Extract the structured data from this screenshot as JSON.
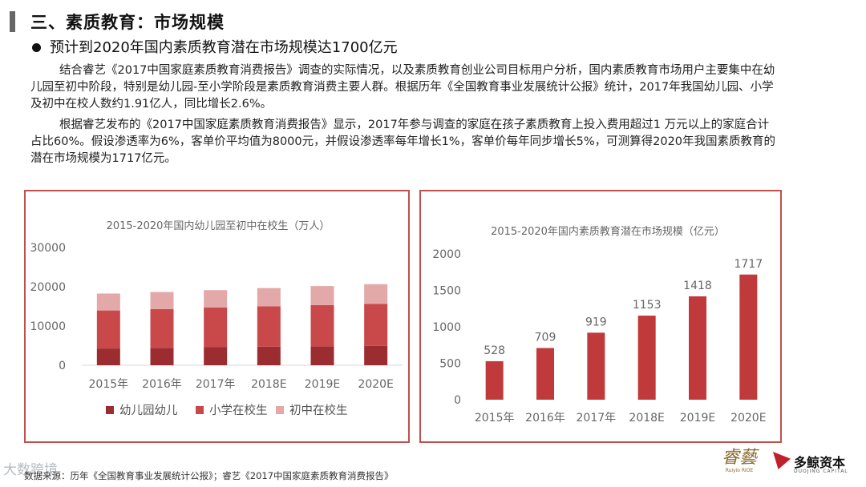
{
  "header": {
    "title": "三、素质教育：市场规模",
    "bullet": "预计到2020年国内素质教育潜在市场规模达1700亿元"
  },
  "body": {
    "paragraph1": "结合睿艺《2017中国家庭素质教育消费报告》调查的实际情况，以及素质教育创业公司目标用户分析，国内素质教育市场用户主要集中在幼儿园至初中阶段，特别是幼儿园-至小学阶段是素质教育消费主要人群。根据历年《全国教育事业发展统计公报》统计，2017年我国幼儿园、小学及初中在校人数约1.91亿人，同比增长2.6%。",
    "paragraph2": "根据睿艺发布的《2017中国家庭素质教育消费报告》显示，2017年参与调查的家庭在孩子素质教育上投入费用超过1 万元以上的家庭合计占比60%。假设渗透率为6%，客单价平均值为8000元，并假设渗透率每年增长1%，客单价每年同步增长5%，可测算得2020年我国素质教育的潜在市场规模为1717亿元。"
  },
  "colors": {
    "accent": "#c0504d",
    "kindergarten": "#9b2d30",
    "primary": "#c9494a",
    "junior": "#e3a8a8",
    "bar": "#c0393b"
  },
  "chart_data": [
    {
      "type": "bar",
      "stacked": true,
      "title": "2015-2020年国内幼儿园至初中在校生（万人）",
      "categories": [
        "2015年",
        "2016年",
        "2017年",
        "2018E",
        "2019E",
        "2020E"
      ],
      "series": [
        {
          "name": "幼儿园幼儿",
          "values": [
            4265,
            4414,
            4600,
            4720,
            4830,
            4950
          ]
        },
        {
          "name": "小学在校生",
          "values": [
            9692,
            9913,
            10094,
            10300,
            10500,
            10700
          ]
        },
        {
          "name": "初中在校生",
          "values": [
            4312,
            4329,
            4442,
            4650,
            4850,
            5000
          ]
        }
      ],
      "yticks": [
        "0",
        "10000",
        "20000",
        "30000"
      ],
      "ylim": [
        0,
        30000
      ],
      "legend": "bottom"
    },
    {
      "type": "bar",
      "title": "2015-2020年国内素质教育潜在市场规模（亿元）",
      "categories": [
        "2015年",
        "2016年",
        "2017年",
        "2018E",
        "2019E",
        "2020E"
      ],
      "values": [
        528,
        709,
        919,
        1153,
        1418,
        1717
      ],
      "value_labels": [
        "528",
        "709",
        "919",
        "1153",
        "1418",
        "1717"
      ],
      "yticks": [
        "0",
        "500",
        "1000",
        "1500",
        "2000"
      ],
      "ylim": [
        0,
        2000
      ]
    }
  ],
  "footer": {
    "source": "数据来源：历年《全国教育事业发展统计公报》；睿艺《2017中国家庭素质教育消费报告》",
    "watermark": "大数跨境",
    "logo_ruiyi": "睿藝",
    "logo_ruiyi_en": "Ruiyio RIOE",
    "logo_dj": "多鲸资本",
    "logo_dj_en": "DUOJING CAPITAL"
  }
}
